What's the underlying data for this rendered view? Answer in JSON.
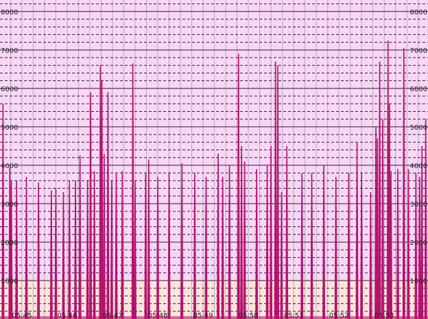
{
  "chart_data": {
    "type": "bar",
    "title": "",
    "xlabel": "",
    "ylabel": "",
    "ylim": [
      0,
      8300
    ],
    "yticks": [
      "1000",
      "2000",
      "3000",
      "4000",
      "5000",
      "6000",
      "7000",
      "8000"
    ],
    "xticks": [
      "05:45",
      "05:46",
      "05:47",
      "05:48",
      "05:49",
      "05:50",
      "05:51",
      "05:52",
      "05:53"
    ],
    "xlim": [
      "05:44:31",
      "05:53:58"
    ],
    "grid": true,
    "colors": {
      "series": "#b5126e",
      "band_high": "#f8d6f6",
      "band_low": "#fbe4dc",
      "grid": "#000000"
    },
    "x": [
      "05:44:35",
      "05:44:44",
      "05:44:46",
      "05:44:53",
      "05:45:06",
      "05:45:22",
      "05:45:39",
      "05:45:45",
      "05:45:55",
      "05:46:03",
      "05:46:11",
      "05:46:17",
      "05:46:27",
      "05:46:31",
      "05:46:36",
      "05:46:44",
      "05:46:46",
      "05:46:49",
      "05:46:54",
      "05:46:59",
      "05:47:05",
      "05:47:13",
      "05:47:27",
      "05:47:30",
      "05:47:44",
      "05:47:48",
      "05:48:00",
      "05:48:15",
      "05:48:32",
      "05:48:49",
      "05:49:04",
      "05:49:20",
      "05:49:26",
      "05:49:35",
      "05:49:47",
      "05:49:51",
      "05:49:55",
      "05:50:11",
      "05:50:25",
      "05:50:30",
      "05:50:36",
      "05:50:39",
      "05:50:44",
      "05:50:51",
      "05:51:11",
      "05:51:24",
      "05:51:40",
      "05:51:56",
      "05:52:13",
      "05:52:24",
      "05:52:30",
      "05:52:42",
      "05:52:49",
      "05:52:51",
      "05:52:54",
      "05:52:58",
      "05:53:05",
      "05:53:07",
      "05:53:09",
      "05:53:18",
      "05:53:26",
      "05:53:32",
      "05:53:42",
      "05:53:47",
      "05:53:50",
      "05:53:55"
    ],
    "values": [
      5600,
      3950,
      3600,
      3600,
      3700,
      3550,
      3350,
      3400,
      3300,
      3600,
      3600,
      4250,
      3600,
      5900,
      3850,
      6600,
      6200,
      4300,
      5900,
      3600,
      3800,
      3850,
      6650,
      3600,
      3800,
      4150,
      3700,
      3800,
      4050,
      3800,
      3700,
      4300,
      3700,
      4000,
      6900,
      4500,
      4100,
      3900,
      4000,
      4500,
      6700,
      6600,
      3300,
      4500,
      3800,
      3800,
      4000,
      3700,
      3800,
      4600,
      3800,
      3300,
      5000,
      4700,
      6700,
      5200,
      7250,
      5600,
      3850,
      3900,
      7050,
      3900,
      3800,
      3700,
      4500,
      5200
    ]
  }
}
